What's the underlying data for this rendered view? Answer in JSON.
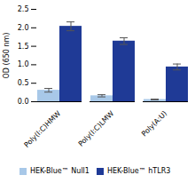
{
  "chart_data": {
    "type": "bar",
    "categories": [
      "Poly(I:C)HMW",
      "Poly(I:C)LMW",
      "Poly(A:U)"
    ],
    "series": [
      {
        "name": "HEK-Blue™ Null1",
        "color": "#a8c8e8",
        "values": [
          0.31,
          0.16,
          0.06
        ],
        "errors": [
          0.05,
          0.03,
          0.01
        ]
      },
      {
        "name": "HEK-Blue™ hTLR3",
        "color": "#1f3a96",
        "values": [
          2.04,
          1.64,
          0.94
        ],
        "errors": [
          0.12,
          0.09,
          0.08
        ]
      }
    ],
    "ylabel": "OD (650 nm)",
    "ylim": [
      0,
      2.5
    ],
    "yticks": [
      {
        "value": 0,
        "label": "0.0"
      },
      0.5,
      {
        "value": 1,
        "label": "1.0"
      },
      1.5,
      {
        "value": 2,
        "label": "2.0"
      },
      2.5
    ],
    "grid": false,
    "legend": "bottom"
  }
}
